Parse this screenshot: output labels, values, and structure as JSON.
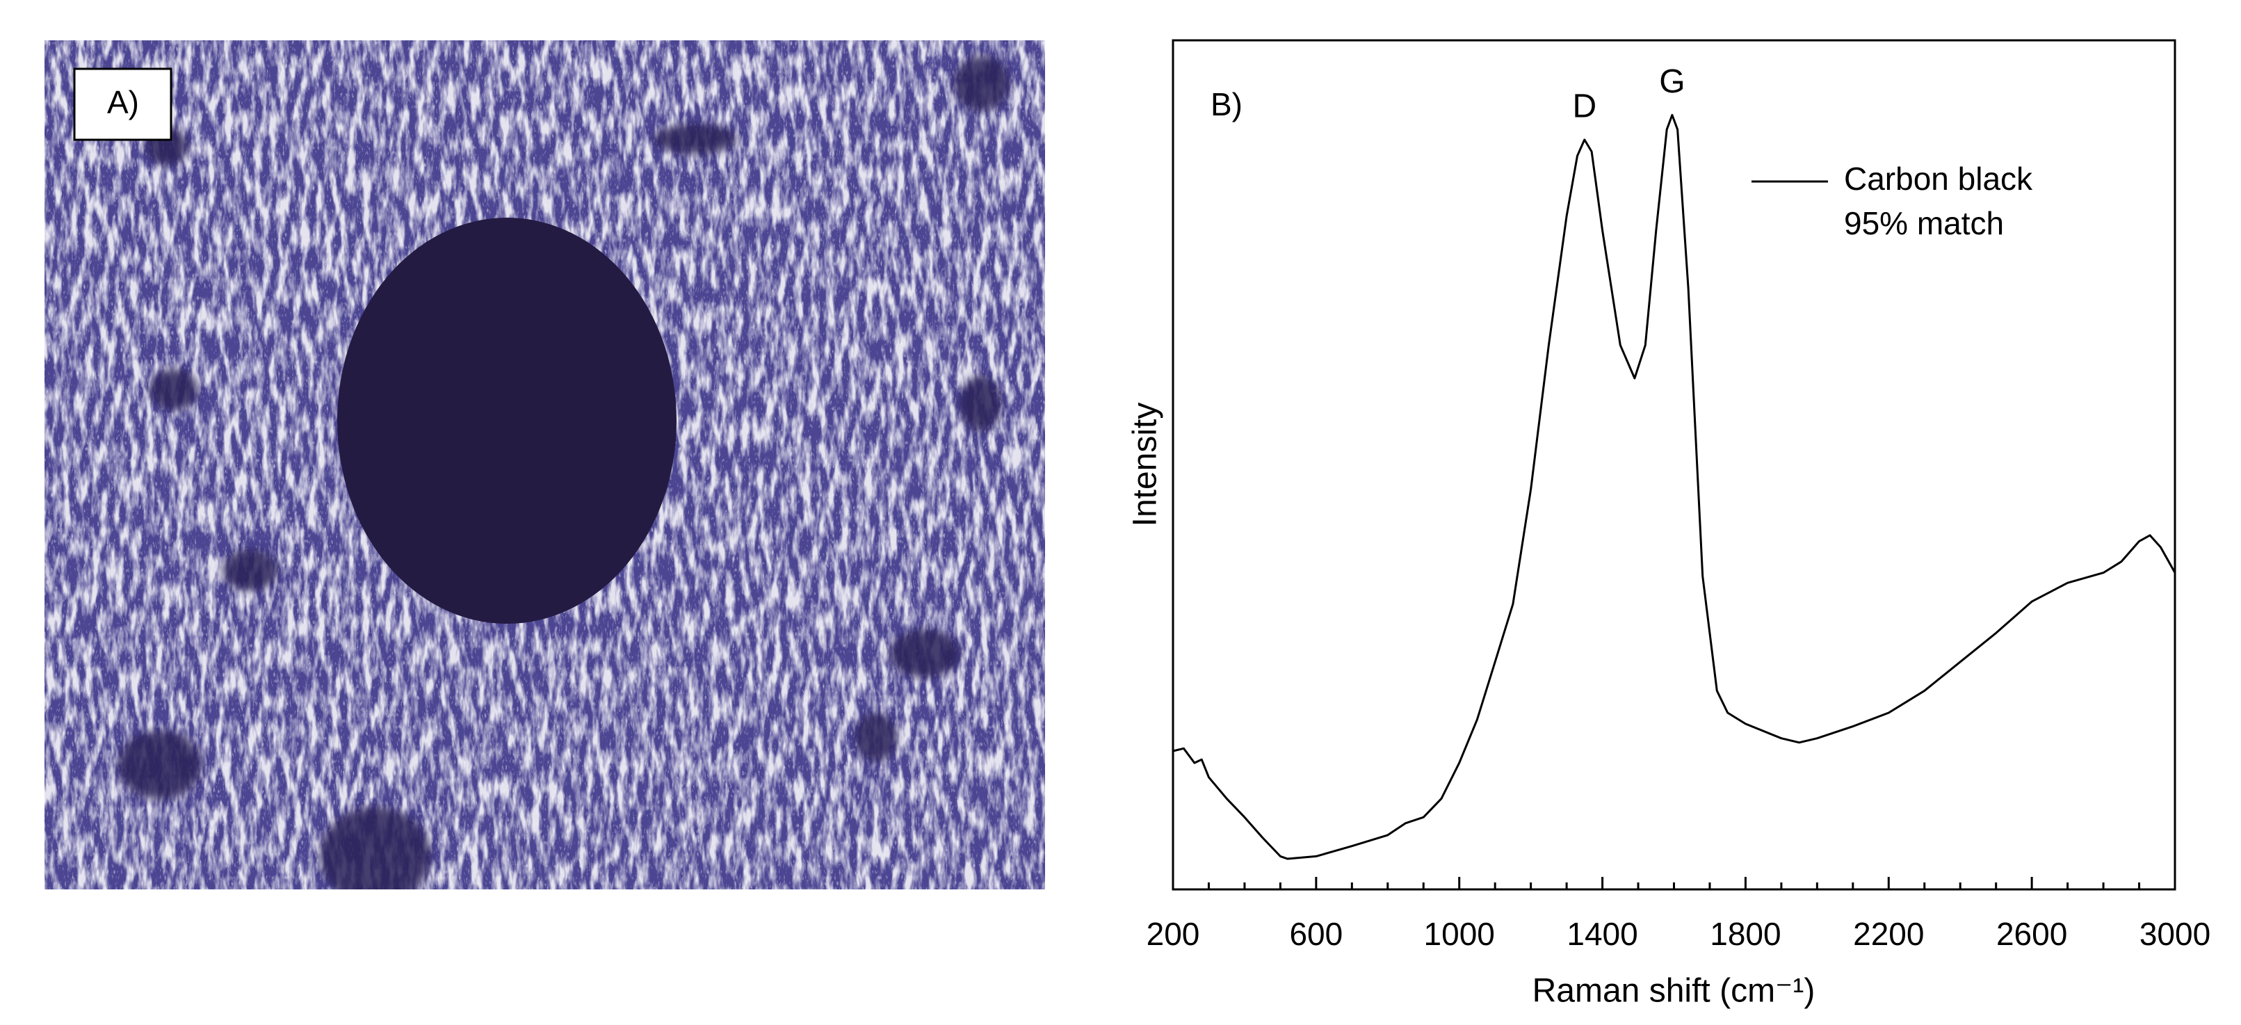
{
  "panel_a": {
    "label": "A)"
  },
  "chart_data": {
    "type": "line",
    "panel_label": "B)",
    "xlabel": "Raman shift (cm⁻¹)",
    "ylabel": "Intensity",
    "annotations": [
      {
        "text": "D",
        "x": 1350
      },
      {
        "text": "G",
        "x": 1595
      }
    ],
    "xlim": [
      200,
      3000
    ],
    "xticks": [
      200,
      600,
      1000,
      1400,
      1800,
      2200,
      2600,
      3000
    ],
    "xminorticks": [
      300,
      400,
      500,
      700,
      800,
      900,
      1100,
      1200,
      1300,
      1500,
      1600,
      1700,
      1900,
      2000,
      2100,
      2300,
      2400,
      2500,
      2700,
      2800,
      2900
    ],
    "ylim": [
      0,
      100
    ],
    "legend": "upper right",
    "series": [
      {
        "name": "Carbon black",
        "name_line2": "95% match",
        "color": "#000000",
        "x": [
          200,
          230,
          260,
          280,
          300,
          350,
          400,
          450,
          500,
          520,
          600,
          700,
          800,
          850,
          900,
          950,
          1000,
          1050,
          1100,
          1150,
          1200,
          1250,
          1300,
          1330,
          1350,
          1370,
          1400,
          1450,
          1490,
          1520,
          1550,
          1580,
          1595,
          1610,
          1640,
          1680,
          1720,
          1750,
          1800,
          1900,
          1950,
          2000,
          2100,
          2200,
          2300,
          2400,
          2500,
          2600,
          2700,
          2800,
          2850,
          2900,
          2930,
          2960,
          3000
        ],
        "values": [
          16.3,
          16.6,
          14.9,
          15.3,
          13.2,
          10.7,
          8.5,
          6.1,
          3.9,
          3.6,
          3.9,
          5.1,
          6.4,
          7.8,
          8.5,
          10.7,
          14.9,
          20,
          26.8,
          33.6,
          47.1,
          64.1,
          79.3,
          86.4,
          88.3,
          86.9,
          77.6,
          64.1,
          60.2,
          64.1,
          77.6,
          89.5,
          91.2,
          89.5,
          70.8,
          36.9,
          23.4,
          20.8,
          19.5,
          17.8,
          17.3,
          17.8,
          19.2,
          20.8,
          23.4,
          26.8,
          30.2,
          33.9,
          36.1,
          37.3,
          38.6,
          41,
          41.7,
          40.3,
          37.3
        ]
      }
    ]
  }
}
